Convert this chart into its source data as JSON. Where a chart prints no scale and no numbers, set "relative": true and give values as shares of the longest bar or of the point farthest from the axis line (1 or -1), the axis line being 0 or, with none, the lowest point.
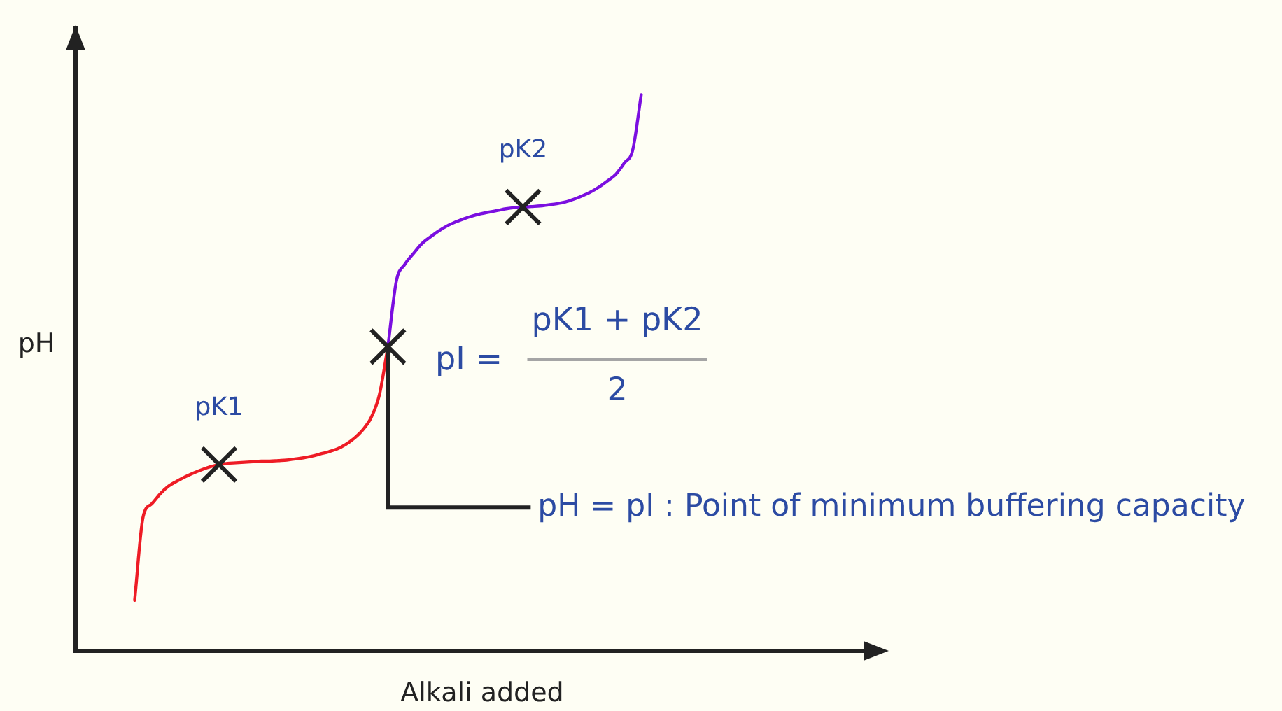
{
  "chart_data": {
    "type": "line",
    "relative": true,
    "xlabel": "Alkali added",
    "ylabel": "pH",
    "categories": [
      null,
      null,
      null,
      null,
      null,
      null,
      null,
      null,
      null,
      null,
      null,
      null,
      null,
      null,
      null,
      null,
      null,
      null,
      null,
      null,
      null,
      null,
      null,
      null,
      null,
      null,
      null,
      null,
      null,
      null,
      null,
      null,
      null,
      null,
      null,
      null,
      null,
      null,
      null,
      null,
      null,
      null,
      null,
      null,
      null,
      null,
      null,
      null,
      null,
      null,
      null,
      null,
      null,
      null,
      null,
      null,
      null,
      null,
      null,
      null,
      null,
      null,
      null,
      null,
      null,
      null,
      null,
      null,
      null,
      null,
      null,
      null,
      null,
      null,
      null,
      null,
      null,
      null,
      null,
      null,
      null,
      null,
      null,
      null,
      null,
      null,
      null,
      null,
      null,
      null,
      null,
      null,
      null,
      null,
      null
    ],
    "series": [
      {
        "color": "#ee1c25",
        "values": [
          null,
          null,
          null,
          null,
          null,
          null,
          null,
          0.091,
          0.241,
          0.264,
          0.282,
          0.296,
          0.305,
          0.313,
          0.32,
          0.326,
          0.331,
          0.335,
          0.337,
          0.338,
          0.339,
          0.34,
          0.341,
          0.341,
          0.342,
          0.343,
          0.345,
          0.347,
          0.35,
          0.354,
          0.358,
          0.363,
          0.371,
          0.382,
          0.397,
          0.419,
          0.461,
          0.547,
          null,
          null,
          null,
          null,
          null,
          null,
          null,
          null,
          null,
          null,
          null,
          null,
          null,
          null,
          null,
          null,
          null,
          null,
          null,
          null,
          null,
          null,
          null,
          null,
          null,
          null,
          null,
          null,
          null,
          null,
          null,
          null,
          null,
          null,
          null,
          null,
          null,
          null,
          null,
          null,
          null,
          null,
          null,
          null,
          null,
          null,
          null,
          null,
          null,
          null,
          null,
          null,
          null,
          null,
          null,
          null,
          null
        ]
      },
      {
        "color": "#7b0fe0",
        "values": [
          null,
          null,
          null,
          null,
          null,
          null,
          null,
          null,
          null,
          null,
          null,
          null,
          null,
          null,
          null,
          null,
          null,
          null,
          null,
          null,
          null,
          null,
          null,
          null,
          null,
          null,
          null,
          null,
          null,
          null,
          null,
          null,
          null,
          null,
          null,
          null,
          null,
          0.547,
          0.665,
          0.695,
          0.714,
          0.732,
          0.744,
          0.755,
          0.764,
          0.771,
          0.777,
          0.782,
          0.786,
          0.789,
          0.792,
          0.795,
          0.797,
          0.798,
          0.799,
          0.8,
          0.802,
          0.804,
          0.807,
          0.812,
          0.818,
          0.825,
          0.834,
          0.845,
          0.857,
          0.877,
          0.901,
          1,
          null,
          null,
          null,
          null,
          null,
          null,
          null,
          null,
          null,
          null,
          null,
          null,
          null,
          null,
          null,
          null,
          null,
          null,
          null,
          null,
          null,
          null,
          null,
          null,
          null,
          null,
          null
        ]
      },
      {
        "marker": "cross",
        "color": "#222222",
        "values": [
          null,
          null,
          null,
          null,
          null,
          null,
          null,
          null,
          null,
          null,
          null,
          null,
          null,
          null,
          null,
          null,
          null,
          0.335,
          null,
          null,
          null,
          null,
          null,
          null,
          null,
          null,
          null,
          null,
          null,
          null,
          null,
          null,
          null,
          null,
          null,
          null,
          null,
          0.547,
          null,
          null,
          null,
          null,
          null,
          null,
          null,
          null,
          null,
          null,
          null,
          null,
          null,
          null,
          null,
          0.798,
          null,
          null,
          null,
          null,
          null,
          null,
          null,
          null,
          null,
          null,
          null,
          null,
          null,
          null,
          null,
          null,
          null,
          null,
          null,
          null,
          null,
          null,
          null,
          null,
          null,
          null,
          null,
          null,
          null,
          null,
          null,
          null,
          null,
          null,
          null,
          null,
          null,
          null,
          null,
          null,
          null
        ]
      }
    ],
    "annotations": [
      "pK1",
      "pK2",
      "pI =",
      "pK1 + pK2",
      "2",
      "pH = pI : Point of minimum buffering capacity"
    ]
  }
}
